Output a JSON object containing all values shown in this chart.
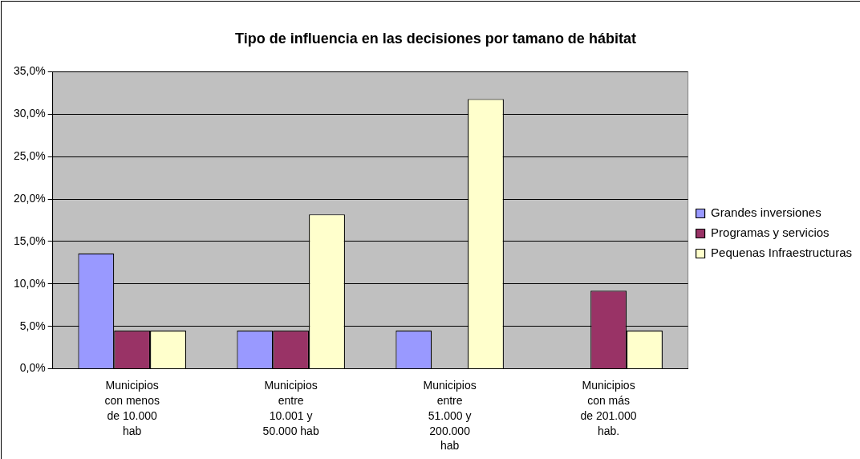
{
  "chart_data": {
    "type": "bar",
    "title": "Tipo de influencia en las decisiones por tamano de hábitat",
    "categories": [
      "Municipios con menos de 10.000 hab",
      "Municipios entre 10.001 y 50.000 hab",
      "Municipios entre 51.000 y 200.000 hab",
      "Municipios con más de 201.000 hab."
    ],
    "series": [
      {
        "name": "Grandes inversiones",
        "color": "#9999ff",
        "values": [
          13.6,
          4.5,
          4.5,
          null
        ]
      },
      {
        "name": "Programas y servicios",
        "color": "#993366",
        "values": [
          4.5,
          4.5,
          null,
          9.2
        ]
      },
      {
        "name": "Pequenas Infraestructuras",
        "color": "#ffffcc",
        "values": [
          4.5,
          18.2,
          31.8,
          4.5
        ]
      }
    ],
    "ylim": [
      0,
      35
    ],
    "yticks": [
      {
        "value": 0,
        "label": "0,0%"
      },
      {
        "value": 5,
        "label": "5,0%"
      },
      {
        "value": 10,
        "label": "10,0%"
      },
      {
        "value": 15,
        "label": "15,0%"
      },
      {
        "value": 20,
        "label": "20,0%"
      },
      {
        "value": 25,
        "label": "25,0%"
      },
      {
        "value": 30,
        "label": "30,0%"
      },
      {
        "value": 35,
        "label": "35,0%"
      }
    ],
    "grid": "y",
    "legend": "right"
  }
}
